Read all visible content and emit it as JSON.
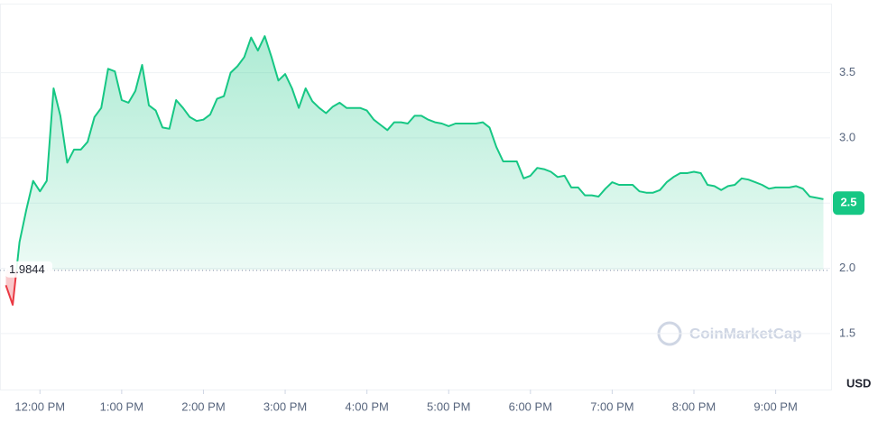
{
  "chart_data": {
    "type": "line",
    "x": [
      "11:35 AM",
      "11:40 AM",
      "11:45 AM",
      "11:50 AM",
      "11:55 AM",
      "12:00 PM",
      "12:05 PM",
      "12:10 PM",
      "12:15 PM",
      "12:20 PM",
      "12:25 PM",
      "12:30 PM",
      "12:35 PM",
      "12:40 PM",
      "12:45 PM",
      "12:50 PM",
      "12:55 PM",
      "1:00 PM",
      "1:05 PM",
      "1:10 PM",
      "1:15 PM",
      "1:20 PM",
      "1:25 PM",
      "1:30 PM",
      "1:35 PM",
      "1:40 PM",
      "1:45 PM",
      "1:50 PM",
      "1:55 PM",
      "2:00 PM",
      "2:05 PM",
      "2:10 PM",
      "2:15 PM",
      "2:20 PM",
      "2:25 PM",
      "2:30 PM",
      "2:35 PM",
      "2:40 PM",
      "2:45 PM",
      "2:50 PM",
      "2:55 PM",
      "3:00 PM",
      "3:05 PM",
      "3:10 PM",
      "3:15 PM",
      "3:20 PM",
      "3:25 PM",
      "3:30 PM",
      "3:35 PM",
      "3:40 PM",
      "3:45 PM",
      "3:50 PM",
      "3:55 PM",
      "4:00 PM",
      "4:05 PM",
      "4:10 PM",
      "4:15 PM",
      "4:20 PM",
      "4:25 PM",
      "4:30 PM",
      "4:35 PM",
      "4:40 PM",
      "4:45 PM",
      "4:50 PM",
      "4:55 PM",
      "5:00 PM",
      "5:05 PM",
      "5:10 PM",
      "5:15 PM",
      "5:20 PM",
      "5:25 PM",
      "5:30 PM",
      "5:35 PM",
      "5:40 PM",
      "5:45 PM",
      "5:50 PM",
      "5:55 PM",
      "6:00 PM",
      "6:05 PM",
      "6:10 PM",
      "6:15 PM",
      "6:20 PM",
      "6:25 PM",
      "6:30 PM",
      "6:35 PM",
      "6:40 PM",
      "6:45 PM",
      "6:50 PM",
      "6:55 PM",
      "7:00 PM",
      "7:05 PM",
      "7:10 PM",
      "7:15 PM",
      "7:20 PM",
      "7:25 PM",
      "7:30 PM",
      "7:35 PM",
      "7:40 PM",
      "7:45 PM",
      "7:50 PM",
      "7:55 PM",
      "8:00 PM",
      "8:05 PM",
      "8:10 PM",
      "8:15 PM",
      "8:20 PM",
      "8:25 PM",
      "8:30 PM",
      "8:35 PM",
      "8:40 PM",
      "8:45 PM",
      "8:50 PM",
      "8:55 PM",
      "9:00 PM",
      "9:05 PM",
      "9:10 PM",
      "9:15 PM",
      "9:20 PM",
      "9:25 PM",
      "9:30 PM",
      "9:35 PM"
    ],
    "values": [
      1.87,
      1.72,
      2.2,
      2.45,
      2.67,
      2.59,
      2.67,
      3.38,
      3.17,
      2.81,
      2.91,
      2.91,
      2.97,
      3.16,
      3.23,
      3.53,
      3.51,
      3.29,
      3.27,
      3.36,
      3.56,
      3.25,
      3.21,
      3.08,
      3.07,
      3.29,
      3.23,
      3.16,
      3.13,
      3.14,
      3.18,
      3.3,
      3.32,
      3.5,
      3.55,
      3.62,
      3.77,
      3.67,
      3.78,
      3.62,
      3.44,
      3.49,
      3.38,
      3.23,
      3.38,
      3.28,
      3.23,
      3.19,
      3.24,
      3.27,
      3.23,
      3.23,
      3.23,
      3.21,
      3.14,
      3.1,
      3.06,
      3.12,
      3.12,
      3.11,
      3.17,
      3.17,
      3.14,
      3.12,
      3.11,
      3.09,
      3.11,
      3.11,
      3.11,
      3.11,
      3.12,
      3.08,
      2.93,
      2.82,
      2.82,
      2.82,
      2.69,
      2.71,
      2.77,
      2.76,
      2.74,
      2.7,
      2.71,
      2.62,
      2.62,
      2.56,
      2.56,
      2.55,
      2.61,
      2.66,
      2.64,
      2.64,
      2.64,
      2.59,
      2.58,
      2.58,
      2.6,
      2.66,
      2.7,
      2.73,
      2.73,
      2.74,
      2.73,
      2.64,
      2.63,
      2.6,
      2.63,
      2.64,
      2.69,
      2.68,
      2.66,
      2.64,
      2.61,
      2.62,
      2.62,
      2.62,
      2.63,
      2.61,
      2.55,
      2.54,
      2.53
    ],
    "color": "#16c784",
    "down_color": "#ea3943",
    "baseline": 1.9844,
    "current_price": 2.5,
    "xlim": [
      "11:34 AM",
      "9:40 PM"
    ],
    "xticks": [
      "12:00 PM",
      "1:00 PM",
      "2:00 PM",
      "3:00 PM",
      "4:00 PM",
      "5:00 PM",
      "6:00 PM",
      "7:00 PM",
      "8:00 PM",
      "9:00 PM"
    ],
    "ylim": [
      1.07,
      4.03
    ],
    "yticks": [
      1.5,
      {
        "value": 2.0,
        "label": "2.0"
      },
      2.5,
      {
        "value": 3.0,
        "label": "3.0"
      },
      3.5
    ],
    "currency": "USD",
    "watermark": "CoinMarketCap",
    "grid": true
  }
}
